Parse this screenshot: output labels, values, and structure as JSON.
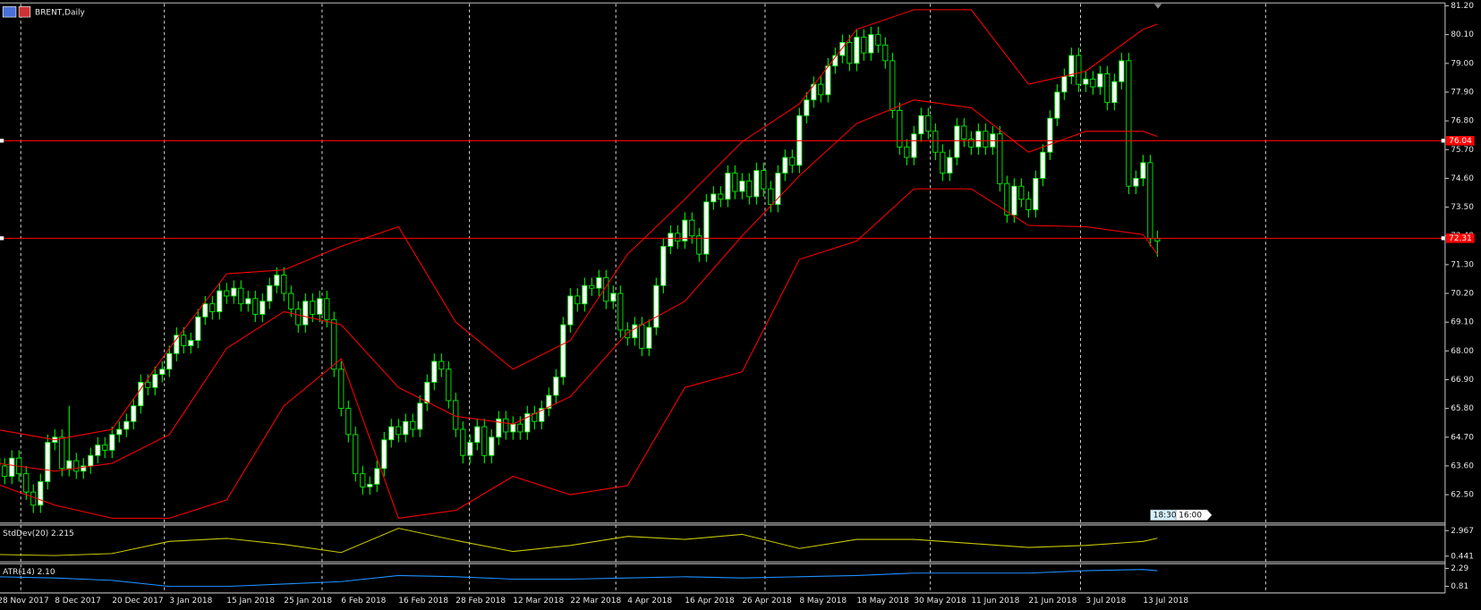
{
  "chart_data": [
    {
      "type": "candlestick",
      "title": "BRENT,Daily",
      "categories": [
        "28 Nov 2017",
        null,
        null,
        null,
        null,
        null,
        null,
        null,
        "8 Dec 2017",
        null,
        null,
        null,
        null,
        null,
        null,
        null,
        "20 Dec 2017",
        null,
        null,
        null,
        null,
        null,
        null,
        null,
        "3 Jan 2018",
        null,
        null,
        null,
        null,
        null,
        null,
        null,
        "15 Jan 2018",
        null,
        null,
        null,
        null,
        null,
        null,
        null,
        "25 Jan 2018",
        null,
        null,
        null,
        null,
        null,
        null,
        null,
        "6 Feb 2018",
        null,
        null,
        null,
        null,
        null,
        null,
        null,
        "16 Feb 2018",
        null,
        null,
        null,
        null,
        null,
        null,
        null,
        "28 Feb 2018",
        null,
        null,
        null,
        null,
        null,
        null,
        null,
        "12 Mar 2018",
        null,
        null,
        null,
        null,
        null,
        null,
        null,
        "22 Mar 2018",
        null,
        null,
        null,
        null,
        null,
        null,
        null,
        "4 Apr 2018",
        null,
        null,
        null,
        null,
        null,
        null,
        null,
        "16 Apr 2018",
        null,
        null,
        null,
        null,
        null,
        null,
        null,
        "26 Apr 2018",
        null,
        null,
        null,
        null,
        null,
        null,
        null,
        "8 May 2018",
        null,
        null,
        null,
        null,
        null,
        null,
        null,
        "18 May 2018",
        null,
        null,
        null,
        null,
        null,
        null,
        null,
        "30 May 2018",
        null,
        null,
        null,
        null,
        null,
        null,
        null,
        "11 Jun 2018",
        null,
        null,
        null,
        null,
        null,
        null,
        null,
        "21 Jun 2018",
        null,
        null,
        null,
        null,
        null,
        null,
        null,
        "3 Jul 2018",
        null,
        null,
        null,
        null,
        null,
        null,
        null,
        "13 Jul 2018",
        null,
        null
      ],
      "open": [
        63.9,
        63.6,
        63.2,
        63.9,
        63.3,
        62.6,
        62.1,
        63.0,
        64.5,
        64.7,
        63.5,
        63.8,
        63.4,
        63.6,
        64.0,
        64.4,
        64.2,
        64.8,
        65.0,
        65.3,
        65.9,
        66.8,
        66.6,
        67.1,
        67.3,
        67.9,
        68.6,
        68.2,
        68.4,
        69.3,
        69.8,
        69.5,
        70.3,
        70.1,
        70.4,
        69.8,
        70.0,
        69.4,
        69.9,
        70.5,
        70.9,
        70.2,
        69.6,
        69.0,
        69.9,
        69.4,
        70.0,
        69.2,
        67.3,
        65.8,
        64.8,
        63.3,
        62.8,
        62.9,
        63.5,
        64.6,
        65.1,
        64.8,
        65.3,
        65.0,
        66.0,
        66.8,
        67.6,
        67.3,
        66.1,
        65.0,
        64.0,
        64.5,
        65.1,
        64.0,
        64.7,
        65.4,
        64.9,
        65.2,
        64.9,
        65.6,
        65.3,
        65.8,
        66.3,
        67.0,
        69.0,
        70.1,
        69.8,
        70.5,
        70.4,
        70.8,
        69.9,
        70.2,
        68.8,
        68.5,
        69.0,
        68.1,
        68.9,
        70.5,
        72.0,
        72.5,
        72.2,
        73.0,
        72.4,
        71.7,
        73.7,
        74.0,
        73.8,
        74.8,
        74.1,
        74.5,
        73.9,
        74.9,
        74.2,
        73.6,
        74.8,
        75.4,
        75.1,
        77.0,
        77.6,
        78.2,
        77.8,
        78.9,
        79.3,
        79.8,
        79.0,
        80.0,
        79.4,
        80.1,
        79.7,
        79.1,
        77.2,
        75.8,
        75.4,
        76.3,
        77.0,
        76.4,
        75.6,
        74.8,
        75.4,
        76.6,
        76.1,
        75.8,
        76.4,
        75.8,
        76.3,
        74.4,
        73.2,
        74.3,
        73.8,
        73.4,
        74.6,
        75.6,
        76.9,
        77.9,
        78.5,
        79.3,
        78.2,
        78.4,
        78.1,
        78.6,
        77.5,
        78.3,
        79.1,
        74.3,
        74.6,
        75.2,
        72.3
      ],
      "high": [
        64.2,
        63.9,
        64.2,
        64.2,
        63.6,
        62.9,
        63.3,
        64.8,
        65.0,
        65.0,
        65.9,
        64.1,
        63.9,
        64.3,
        64.7,
        64.7,
        65.1,
        65.3,
        65.6,
        66.2,
        67.1,
        67.1,
        67.4,
        67.6,
        68.2,
        68.9,
        68.9,
        68.7,
        69.6,
        70.1,
        70.1,
        70.6,
        70.6,
        70.7,
        70.7,
        70.3,
        70.3,
        70.2,
        70.8,
        71.2,
        71.2,
        70.5,
        69.9,
        70.2,
        70.2,
        70.3,
        70.3,
        69.5,
        67.6,
        66.1,
        65.1,
        63.6,
        63.2,
        63.8,
        64.9,
        65.4,
        65.4,
        65.6,
        65.6,
        66.3,
        67.1,
        67.9,
        67.9,
        67.6,
        66.4,
        65.3,
        64.8,
        65.4,
        65.4,
        65.0,
        65.7,
        65.7,
        65.5,
        65.5,
        65.9,
        65.9,
        66.1,
        66.6,
        67.3,
        69.3,
        70.4,
        70.4,
        70.8,
        70.8,
        71.1,
        71.1,
        70.5,
        70.5,
        69.1,
        69.3,
        69.3,
        69.2,
        70.8,
        72.3,
        72.8,
        72.8,
        73.3,
        73.3,
        72.7,
        74.0,
        74.3,
        74.3,
        75.1,
        75.1,
        74.8,
        74.8,
        75.2,
        75.2,
        74.5,
        75.1,
        75.7,
        75.7,
        77.3,
        77.9,
        78.5,
        78.5,
        79.2,
        79.6,
        80.1,
        80.1,
        80.3,
        80.3,
        80.4,
        80.4,
        80.0,
        79.4,
        77.5,
        76.1,
        76.6,
        77.3,
        77.3,
        76.7,
        75.9,
        75.7,
        76.9,
        76.9,
        76.4,
        76.7,
        76.7,
        76.6,
        76.6,
        74.7,
        74.6,
        74.6,
        74.1,
        74.9,
        75.9,
        77.2,
        78.2,
        78.8,
        79.6,
        79.6,
        78.7,
        78.7,
        78.9,
        78.9,
        78.6,
        79.4,
        79.4,
        74.9,
        75.5,
        75.5,
        72.6
      ],
      "low": [
        63.3,
        62.9,
        62.9,
        63.0,
        62.3,
        61.8,
        61.8,
        62.7,
        64.2,
        63.2,
        63.2,
        63.1,
        63.1,
        63.3,
        63.7,
        63.9,
        63.9,
        64.5,
        64.7,
        65.0,
        65.6,
        66.3,
        66.3,
        66.8,
        67.0,
        67.6,
        67.9,
        67.9,
        68.1,
        69.0,
        69.2,
        69.2,
        69.8,
        69.8,
        69.5,
        69.5,
        69.1,
        69.1,
        69.6,
        70.2,
        69.9,
        69.3,
        68.7,
        68.7,
        69.1,
        69.1,
        68.9,
        67.0,
        65.5,
        64.5,
        63.0,
        62.5,
        62.5,
        62.6,
        63.2,
        64.3,
        64.5,
        64.5,
        64.7,
        64.7,
        65.7,
        66.5,
        67.0,
        65.8,
        64.7,
        63.7,
        63.7,
        64.2,
        63.7,
        63.7,
        64.4,
        64.6,
        64.6,
        64.6,
        64.6,
        65.0,
        65.0,
        65.5,
        66.0,
        66.7,
        68.7,
        69.5,
        69.5,
        70.1,
        70.1,
        69.6,
        69.6,
        68.5,
        68.2,
        68.2,
        67.8,
        67.8,
        68.6,
        70.2,
        71.7,
        71.9,
        71.9,
        72.1,
        71.4,
        71.4,
        73.4,
        73.5,
        73.5,
        73.8,
        73.8,
        73.6,
        73.6,
        73.9,
        73.3,
        73.3,
        74.5,
        74.8,
        74.8,
        76.7,
        77.3,
        77.5,
        77.5,
        78.6,
        79.0,
        78.7,
        78.7,
        79.1,
        79.1,
        79.4,
        78.8,
        76.9,
        75.5,
        75.1,
        75.1,
        76.0,
        76.1,
        75.3,
        74.5,
        74.5,
        75.1,
        75.8,
        75.5,
        75.5,
        75.5,
        75.5,
        74.1,
        72.9,
        72.9,
        73.5,
        73.1,
        73.1,
        74.3,
        75.3,
        76.6,
        77.6,
        78.2,
        77.9,
        77.9,
        77.8,
        77.8,
        77.2,
        77.2,
        78.0,
        74.0,
        74.0,
        74.3,
        72.0,
        71.6
      ],
      "close": [
        63.6,
        63.2,
        63.9,
        63.3,
        62.6,
        62.1,
        63.0,
        64.5,
        64.7,
        63.5,
        63.8,
        63.4,
        63.6,
        64.0,
        64.4,
        64.2,
        64.8,
        65.0,
        65.3,
        65.9,
        66.8,
        66.6,
        67.1,
        67.3,
        67.9,
        68.6,
        68.2,
        68.4,
        69.3,
        69.8,
        69.5,
        70.3,
        70.1,
        70.4,
        69.8,
        70.0,
        69.4,
        69.9,
        70.5,
        70.9,
        70.2,
        69.6,
        69.0,
        69.9,
        69.4,
        70.0,
        69.2,
        67.3,
        65.8,
        64.8,
        63.3,
        62.8,
        62.9,
        63.5,
        64.6,
        65.1,
        64.8,
        65.3,
        65.0,
        66.0,
        66.8,
        67.6,
        67.3,
        66.1,
        65.0,
        64.0,
        64.5,
        65.1,
        64.0,
        64.7,
        65.4,
        64.9,
        65.2,
        64.9,
        65.6,
        65.3,
        65.8,
        66.3,
        67.0,
        69.0,
        70.1,
        69.8,
        70.5,
        70.4,
        70.8,
        69.9,
        70.2,
        68.8,
        68.5,
        69.0,
        68.1,
        68.9,
        70.5,
        72.0,
        72.5,
        72.2,
        73.0,
        72.4,
        71.7,
        73.7,
        74.0,
        73.8,
        74.8,
        74.1,
        74.5,
        73.9,
        74.9,
        74.2,
        73.6,
        74.8,
        75.4,
        75.1,
        77.0,
        77.6,
        78.2,
        77.8,
        78.9,
        79.3,
        79.8,
        79.0,
        80.0,
        79.4,
        80.1,
        79.7,
        79.1,
        77.2,
        75.8,
        75.4,
        76.3,
        77.0,
        76.4,
        75.6,
        74.8,
        75.4,
        76.6,
        76.1,
        75.8,
        76.4,
        75.8,
        76.3,
        74.4,
        73.2,
        74.3,
        73.8,
        73.4,
        74.6,
        75.6,
        76.9,
        77.9,
        78.5,
        79.3,
        78.2,
        78.4,
        78.1,
        78.6,
        77.5,
        78.3,
        79.1,
        74.3,
        74.6,
        75.2,
        72.3,
        72.2
      ],
      "up_color": "#ffffff",
      "down_color": "#000000",
      "wick_color": "#00ff00",
      "bands": {
        "x": [
          0,
          8,
          16,
          24,
          32,
          40,
          48,
          56,
          64,
          72,
          80,
          88,
          96,
          104,
          112,
          120,
          128,
          136,
          144,
          152,
          160,
          162
        ],
        "series": [
          {
            "color": "#ff0000",
            "values": [
              64.99,
              64.6,
              65.0,
              68.1,
              70.95,
              71.1,
              72.0,
              72.75,
              69.1,
              67.3,
              68.4,
              71.7,
              73.8,
              76.0,
              77.45,
              80.3,
              81.05,
              81.05,
              78.2,
              78.7,
              80.3,
              80.5
            ]
          },
          {
            "color": "#ff0000",
            "values": [
              63.7,
              63.4,
              63.7,
              64.8,
              68.1,
              69.5,
              69.0,
              66.6,
              65.5,
              65.2,
              66.25,
              68.7,
              69.9,
              72.4,
              74.7,
              76.7,
              77.6,
              77.3,
              75.6,
              76.4,
              76.4,
              76.2
            ]
          },
          {
            "color": "#ff0000",
            "values": [
              62.9,
              62.1,
              61.6,
              61.6,
              62.3,
              65.9,
              67.7,
              61.6,
              61.9,
              63.2,
              62.5,
              62.85,
              66.6,
              67.2,
              71.5,
              72.2,
              74.2,
              74.2,
              72.8,
              72.75,
              72.45,
              71.7
            ]
          }
        ]
      },
      "hlines": [
        {
          "value": 76.04,
          "label": "76.04"
        },
        {
          "value": 72.31,
          "label": "72.31"
        }
      ],
      "hline_color": "#ff0000",
      "annotations": [
        "18:30",
        "16:00"
      ],
      "ylim": [
        61.45,
        81.42
      ],
      "yticks": [
        {
          "value": 81.2,
          "label": "81.20"
        },
        {
          "value": 80.1,
          "label": "80.10"
        },
        {
          "value": 79.0,
          "label": "79.00"
        },
        {
          "value": 77.9,
          "label": "77.90"
        },
        {
          "value": 76.8,
          "label": "76.80"
        },
        {
          "value": 75.7,
          "label": "75.70"
        },
        {
          "value": 74.6,
          "label": "74.60"
        },
        {
          "value": 73.5,
          "label": "73.50"
        },
        {
          "value": 72.4,
          "label": "72.40"
        },
        {
          "value": 71.3,
          "label": "71.30"
        },
        {
          "value": 70.2,
          "label": "70.20"
        },
        {
          "value": 69.1,
          "label": "69.10"
        },
        {
          "value": 68.0,
          "label": "68.00"
        },
        {
          "value": 66.9,
          "label": "66.90"
        },
        {
          "value": 65.8,
          "label": "65.80"
        },
        {
          "value": 64.7,
          "label": "64.70"
        },
        {
          "value": 63.6,
          "label": "63.60"
        },
        {
          "value": 62.5,
          "label": "62.50"
        }
      ]
    },
    {
      "type": "line",
      "title": "StdDev(20) 2.215",
      "x": [
        0,
        8,
        16,
        24,
        32,
        40,
        48,
        56,
        64,
        72,
        80,
        88,
        96,
        104,
        112,
        120,
        128,
        136,
        144,
        152,
        160,
        162
      ],
      "values": [
        0.6,
        0.5,
        0.7,
        1.9,
        2.2,
        1.6,
        0.8,
        3.2,
        2.0,
        0.9,
        1.5,
        2.4,
        2.1,
        2.6,
        1.2,
        2.1,
        2.1,
        1.7,
        1.3,
        1.5,
        1.9,
        2.215
      ],
      "color": "#c8c800",
      "ylim": [
        -0.12,
        3.53
      ],
      "yticks": [
        2.967,
        0.441
      ]
    },
    {
      "type": "line",
      "title": "ATR(14) 2.10",
      "x": [
        0,
        8,
        16,
        24,
        32,
        40,
        48,
        56,
        64,
        72,
        80,
        88,
        96,
        104,
        112,
        120,
        128,
        136,
        144,
        152,
        160,
        162
      ],
      "values": [
        1.6,
        1.5,
        1.3,
        0.8,
        0.8,
        1.0,
        1.2,
        1.7,
        1.6,
        1.4,
        1.4,
        1.5,
        1.6,
        1.5,
        1.6,
        1.7,
        1.9,
        1.9,
        1.9,
        2.1,
        2.2,
        2.1
      ],
      "color": "#1e90ff",
      "ylim": [
        0.34,
        2.68
      ],
      "yticks": [
        2.29,
        0.81
      ]
    }
  ]
}
